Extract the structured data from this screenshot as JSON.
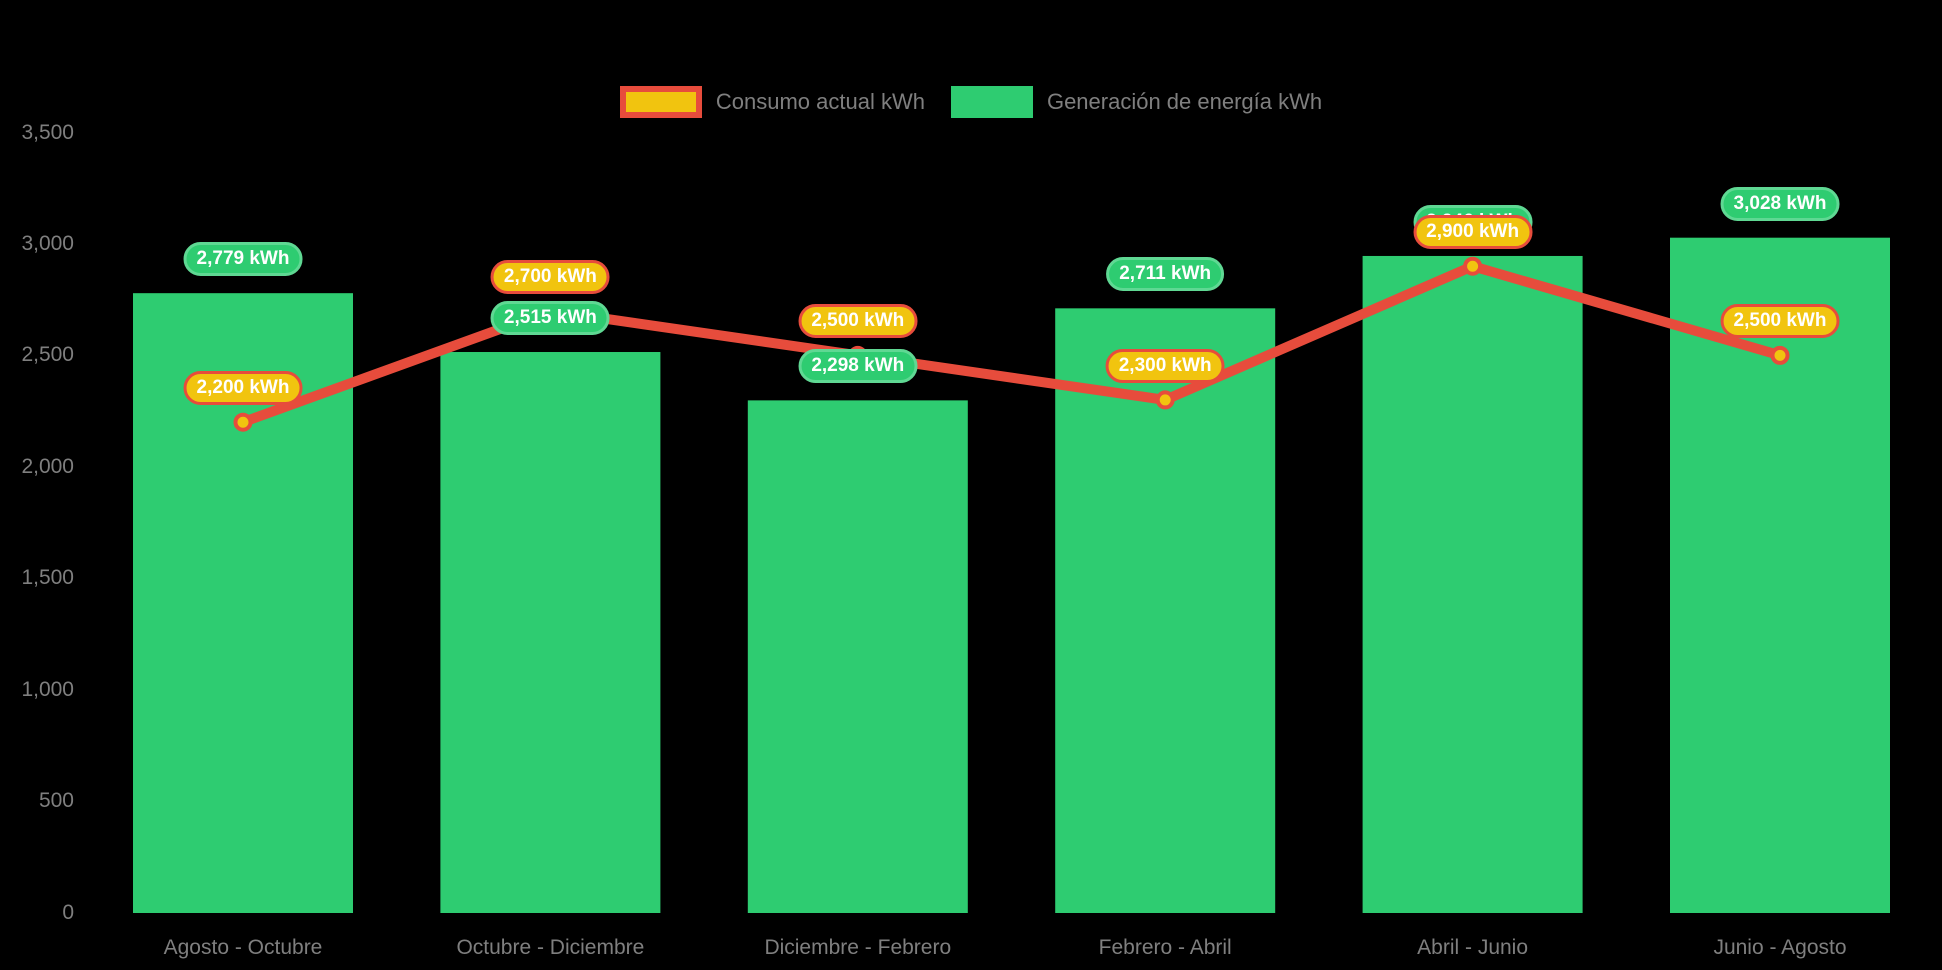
{
  "chart_data": {
    "type": "bar+line",
    "categories": [
      "Agosto - Octubre",
      "Octubre - Diciembre",
      "Diciembre - Febrero",
      "Febrero - Abril",
      "Abril - Junio",
      "Junio - Agosto"
    ],
    "series": [
      {
        "name": "Consumo actual kWh",
        "type": "line",
        "values": [
          2200,
          2700,
          2500,
          2300,
          2900,
          2500
        ],
        "labels": [
          "2,200 kWh",
          "2,700 kWh",
          "2,500 kWh",
          "2,300 kWh",
          "2,900 kWh",
          "2,500 kWh"
        ],
        "line_color": "#e74c3c",
        "point_color": "#f1c40f"
      },
      {
        "name": "Generación de energía kWh",
        "type": "bar",
        "values": [
          2779,
          2515,
          2298,
          2711,
          2946,
          3028
        ],
        "labels": [
          "2,779 kWh",
          "2,515 kWh",
          "2,298 kWh",
          "2,711 kWh",
          "2,946 kWh",
          "3,028 kWh"
        ],
        "bar_color": "#2ecc71"
      }
    ],
    "y_axis": {
      "tick_labels": [
        "3,500",
        "3,000",
        "2,500",
        "2,000",
        "1,500",
        "1,000",
        "500",
        "0"
      ],
      "tick_values": [
        3500,
        3000,
        2500,
        2000,
        1500,
        1000,
        500,
        0
      ],
      "range": [
        0,
        3500
      ]
    },
    "grid": "off",
    "legend_position": "top-center",
    "background_color": "#000000",
    "badge_text_color": "#ffffff",
    "axis_text_color": "#7f7f7f",
    "badge_border_green": "#5fd893"
  }
}
